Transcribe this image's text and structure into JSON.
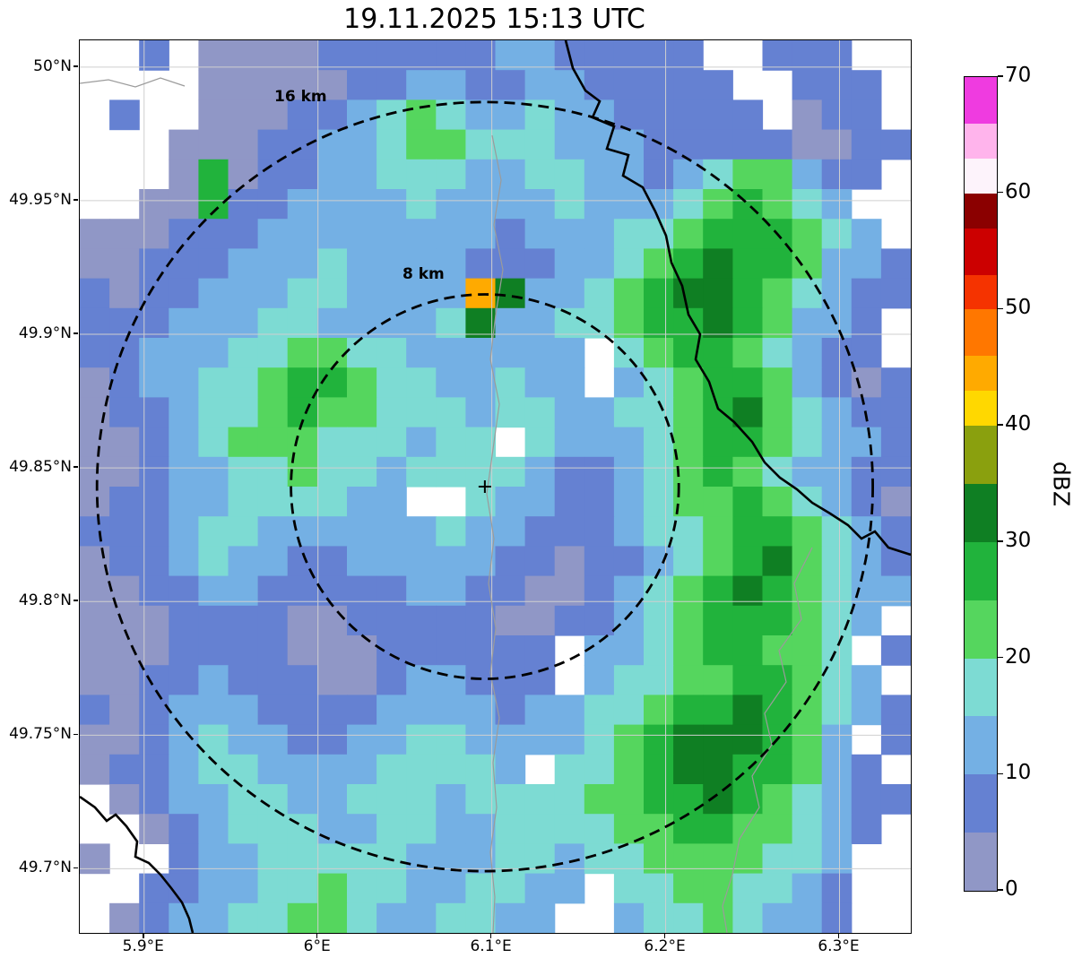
{
  "title": "19.11.2025 15:13 UTC",
  "chart_data": {
    "type": "heatmap",
    "title": "19.11.2025 15:13 UTC",
    "description": "Weather radar reflectivity PPI map with 8 km and 16 km range rings",
    "colorbar": {
      "label": "dBZ",
      "min": 0,
      "max": 70,
      "ticks": [
        0,
        10,
        20,
        30,
        40,
        50,
        60,
        70
      ],
      "segments": [
        {
          "from": 0,
          "to": 5,
          "color": "#9097c6"
        },
        {
          "from": 5,
          "to": 10,
          "color": "#6581d2"
        },
        {
          "from": 10,
          "to": 15,
          "color": "#74b0e4"
        },
        {
          "from": 15,
          "to": 20,
          "color": "#7ddbd3"
        },
        {
          "from": 20,
          "to": 25,
          "color": "#55d65e"
        },
        {
          "from": 25,
          "to": 30,
          "color": "#21b33c"
        },
        {
          "from": 30,
          "to": 35,
          "color": "#0f7f23"
        },
        {
          "from": 35,
          "to": 40,
          "color": "#8aa00e"
        },
        {
          "from": 40,
          "to": 43,
          "color": "#ffd800"
        },
        {
          "from": 43,
          "to": 46,
          "color": "#ffaa00"
        },
        {
          "from": 46,
          "to": 50,
          "color": "#ff7700"
        },
        {
          "from": 50,
          "to": 53,
          "color": "#f53300"
        },
        {
          "from": 53,
          "to": 57,
          "color": "#cc0000"
        },
        {
          "from": 57,
          "to": 60,
          "color": "#8b0000"
        },
        {
          "from": 60,
          "to": 63,
          "color": "#fdf3fb"
        },
        {
          "from": 63,
          "to": 66,
          "color": "#ffb4ec"
        },
        {
          "from": 66,
          "to": 70,
          "color": "#ef3be0"
        }
      ]
    },
    "x_axis": {
      "ticks": [
        "5.9°E",
        "6°E",
        "6.1°E",
        "6.2°E",
        "6.3°E"
      ],
      "values": [
        5.9,
        6.0,
        6.1,
        6.2,
        6.3
      ],
      "range": [
        5.863,
        6.341
      ]
    },
    "y_axis": {
      "ticks": [
        "50°N",
        "49.95°N",
        "49.9°N",
        "49.85°N",
        "49.8°N",
        "49.75°N",
        "49.7°N"
      ],
      "values": [
        50.0,
        49.95,
        49.9,
        49.85,
        49.8,
        49.75,
        49.7
      ],
      "range": [
        49.676,
        50.01
      ]
    },
    "radar_site": [
      6.096,
      49.843
    ],
    "range_rings": [
      {
        "label": "8 km",
        "radius_km": 8,
        "label_pos": [
          6.0487,
          49.9225
        ]
      },
      {
        "label": "16 km",
        "radius_km": 16,
        "label_pos": [
          5.975,
          49.989
        ]
      }
    ],
    "grid": {
      "units": "dBZ",
      "legend": {
        ".": "no echo",
        "a": "0-5 dBZ",
        "b": "5-10 dBZ",
        "c": "10-15 dBZ",
        "d": "15-20 dBZ",
        "e": "20-25 dBZ",
        "f": "25-30 dBZ",
        "g": "30-35 dBZ",
        "h": "40-45 dBZ"
      },
      "palette": {
        "a": "#9097c6",
        "b": "#6581d2",
        "c": "#74b0e4",
        "d": "#7ddbd3",
        "e": "#55d65e",
        "f": "#21b33c",
        "g": "#0f7f23",
        "h": "#ffaa00"
      },
      "rows": [
        "..b.aaaabbbbbbccbbbbb..bbb..",
        "....aaaaabbccbbccbbbbb..bbb.",
        ".b..aaabbcdedccdccbbbbb.abb.",
        "...aaabbccdeedddcccbbbbbaabb",
        "...afabbccdddccddccbcdeecbb.",
        "..aafbbccccdccccdcccdefedc..",
        "aaabbbccccccccbcccddefffedc.",
        "aabbbcccdccccbbbccdefgffeccb",
        "babbcccddcccchgccdefggfedcbb",
        "bbbcccddccccdgccddeffgfeccb.",
        "bbcccddeeddcccccc.deffedcbb.",
        "abccddeffeddccdcc.cdeffecbab",
        "abbcddefeedddcddccddefgedcbb",
        "aabcdeeedddcdd.dcccdeffedccb",
        "aabccddeddcddddcbbcdefedccbb",
        "abbccddddcc..dccbbcdeefedcba",
        "bbbcddccccccdccbbbcddeffedcb",
        "abbcdccbbcccccbbabbcdefgedcb",
        "aabbccbbbbbccbbaabcdefgfedcc",
        "aaabbbbaabbbbbaabbcdefffedc.",
        "aaabbbbaaabbbbbb.ccdeffeed.b",
        "aabbcbbbaabccbbb.cddeeffedc.",
        "babcccbbbbccccbccddeffgfedcb",
        "aabcdccbbccddccccdefgggfec.b",
        "abbcddccccddddc.ddefggffecb.",
        ".abccddccdddcddddeeffgfedcbb",
        "..abcdddccddccddddeeffeedcb.",
        "a..bccdddddcccddcddeeeeddc..",
        "..bbccddeddccddcc.ddeeddcb..",
        ".abccddeedccddcc..cddedccb.."
      ]
    },
    "borders": [
      [
        [
          0.585,
          0.0
        ],
        [
          0.593,
          0.031
        ],
        [
          0.608,
          0.056
        ],
        [
          0.626,
          0.068
        ],
        [
          0.617,
          0.086
        ],
        [
          0.643,
          0.096
        ],
        [
          0.634,
          0.121
        ],
        [
          0.66,
          0.129
        ],
        [
          0.654,
          0.152
        ],
        [
          0.677,
          0.165
        ],
        [
          0.693,
          0.192
        ],
        [
          0.705,
          0.219
        ],
        [
          0.712,
          0.249
        ],
        [
          0.725,
          0.275
        ],
        [
          0.733,
          0.307
        ],
        [
          0.746,
          0.329
        ],
        [
          0.741,
          0.357
        ],
        [
          0.757,
          0.383
        ],
        [
          0.768,
          0.413
        ],
        [
          0.787,
          0.428
        ],
        [
          0.809,
          0.45
        ],
        [
          0.824,
          0.473
        ],
        [
          0.843,
          0.49
        ],
        [
          0.863,
          0.503
        ],
        [
          0.881,
          0.518
        ],
        [
          0.903,
          0.53
        ],
        [
          0.924,
          0.543
        ],
        [
          0.941,
          0.558
        ],
        [
          0.957,
          0.55
        ],
        [
          0.973,
          0.568
        ],
        [
          1.0,
          0.576
        ]
      ],
      [
        [
          0.0,
          0.847
        ],
        [
          0.018,
          0.859
        ],
        [
          0.032,
          0.874
        ],
        [
          0.043,
          0.867
        ],
        [
          0.056,
          0.881
        ],
        [
          0.069,
          0.898
        ],
        [
          0.067,
          0.915
        ],
        [
          0.083,
          0.922
        ],
        [
          0.097,
          0.935
        ],
        [
          0.11,
          0.95
        ],
        [
          0.123,
          0.966
        ],
        [
          0.132,
          0.984
        ],
        [
          0.136,
          1.0
        ]
      ]
    ],
    "rivers": [
      [
        [
          0.496,
          0.106
        ],
        [
          0.507,
          0.157
        ],
        [
          0.498,
          0.207
        ],
        [
          0.509,
          0.257
        ],
        [
          0.5,
          0.307
        ],
        [
          0.494,
          0.357
        ],
        [
          0.505,
          0.408
        ],
        [
          0.497,
          0.458
        ],
        [
          0.49,
          0.508
        ],
        [
          0.498,
          0.558
        ],
        [
          0.492,
          0.608
        ],
        [
          0.5,
          0.659
        ],
        [
          0.494,
          0.709
        ],
        [
          0.505,
          0.759
        ],
        [
          0.497,
          0.809
        ],
        [
          0.502,
          0.859
        ],
        [
          0.494,
          0.91
        ],
        [
          0.499,
          0.96
        ],
        [
          0.497,
          1.0
        ]
      ],
      [
        [
          0.881,
          0.568
        ],
        [
          0.86,
          0.608
        ],
        [
          0.868,
          0.649
        ],
        [
          0.841,
          0.684
        ],
        [
          0.85,
          0.719
        ],
        [
          0.824,
          0.754
        ],
        [
          0.833,
          0.789
        ],
        [
          0.809,
          0.824
        ],
        [
          0.818,
          0.859
        ],
        [
          0.794,
          0.895
        ],
        [
          0.785,
          0.935
        ],
        [
          0.774,
          0.97
        ],
        [
          0.779,
          1.0
        ]
      ],
      [
        [
          0.0,
          0.048
        ],
        [
          0.035,
          0.044
        ],
        [
          0.067,
          0.052
        ],
        [
          0.097,
          0.042
        ],
        [
          0.126,
          0.051
        ]
      ]
    ]
  }
}
